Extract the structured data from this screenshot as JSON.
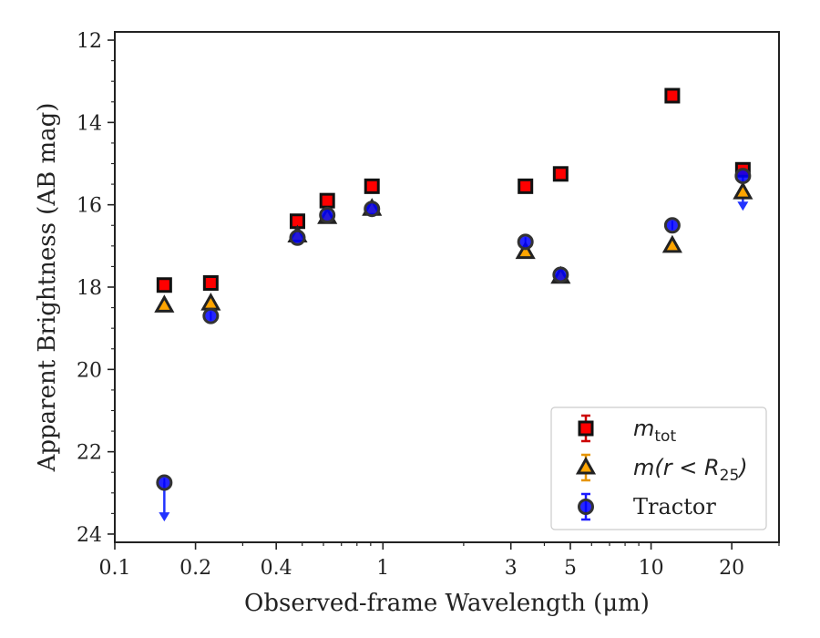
{
  "chart_data": {
    "type": "scatter",
    "xlabel": "Observed-frame Wavelength (μm)",
    "ylabel": "Apparent Brightness (AB mag)",
    "x_scale": "log",
    "y_inverted": true,
    "xlim": [
      0.1,
      30
    ],
    "ylim": [
      24.2,
      11.8
    ],
    "x_ticks": [
      {
        "value": 0.1,
        "label": "0.1"
      },
      {
        "value": 0.2,
        "label": "0.2"
      },
      {
        "value": 0.4,
        "label": "0.4"
      },
      {
        "value": 1,
        "label": "1"
      },
      {
        "value": 3,
        "label": "3"
      },
      {
        "value": 5,
        "label": "5"
      },
      {
        "value": 10,
        "label": "10"
      },
      {
        "value": 20,
        "label": "20"
      }
    ],
    "x_minor_ticks": [
      0.3,
      0.5,
      0.6,
      0.7,
      0.8,
      0.9,
      2,
      4,
      6,
      7,
      8,
      9,
      30
    ],
    "y_ticks": [
      {
        "value": 12,
        "label": "12"
      },
      {
        "value": 14,
        "label": "14"
      },
      {
        "value": 16,
        "label": "16"
      },
      {
        "value": 18,
        "label": "18"
      },
      {
        "value": 20,
        "label": "20"
      },
      {
        "value": 22,
        "label": "22"
      },
      {
        "value": 24,
        "label": "24"
      }
    ],
    "legend_position": "lower-right",
    "series": [
      {
        "name": "m_tot",
        "marker": "square",
        "color": "#ff0000",
        "edge_color": "#111111",
        "errbar_color": "#cc0000",
        "x": [
          0.153,
          0.228,
          0.48,
          0.62,
          0.91,
          3.4,
          4.6,
          12.0,
          22.0
        ],
        "y": [
          17.95,
          17.9,
          16.4,
          15.9,
          15.55,
          15.55,
          15.25,
          13.35,
          15.15
        ]
      },
      {
        "name": "m(r < R25)",
        "marker": "triangle",
        "color": "#ffa500",
        "edge_color": "#222222",
        "errbar_color": "#e69500",
        "x": [
          0.153,
          0.228,
          0.48,
          0.62,
          0.91,
          3.4,
          4.6,
          12.0,
          22.0
        ],
        "y": [
          18.45,
          18.4,
          16.75,
          16.3,
          16.1,
          17.15,
          17.75,
          17.0,
          15.7
        ]
      },
      {
        "name": "Tractor",
        "marker": "circle",
        "color": "#0000ff",
        "edge_color": "#333333",
        "errbar_color": "#1a1aff",
        "x": [
          0.153,
          0.228,
          0.48,
          0.62,
          0.91,
          3.4,
          4.6,
          12.0,
          22.0
        ],
        "y": [
          22.75,
          18.7,
          16.8,
          16.25,
          16.1,
          16.9,
          17.7,
          16.5,
          15.3
        ],
        "upper_limits": [
          true,
          false,
          false,
          false,
          false,
          false,
          false,
          false,
          true
        ],
        "limit_extent": [
          0.9,
          0,
          0,
          0,
          0,
          0,
          0,
          0,
          0.8
        ]
      }
    ],
    "legend": [
      {
        "marker": "square",
        "label_main": "m",
        "label_sub": "tot"
      },
      {
        "marker": "triangle",
        "label_main": "m(r < R",
        "label_sub": "25",
        "label_tail": ")"
      },
      {
        "marker": "circle",
        "label_main": "Tractor"
      }
    ]
  }
}
